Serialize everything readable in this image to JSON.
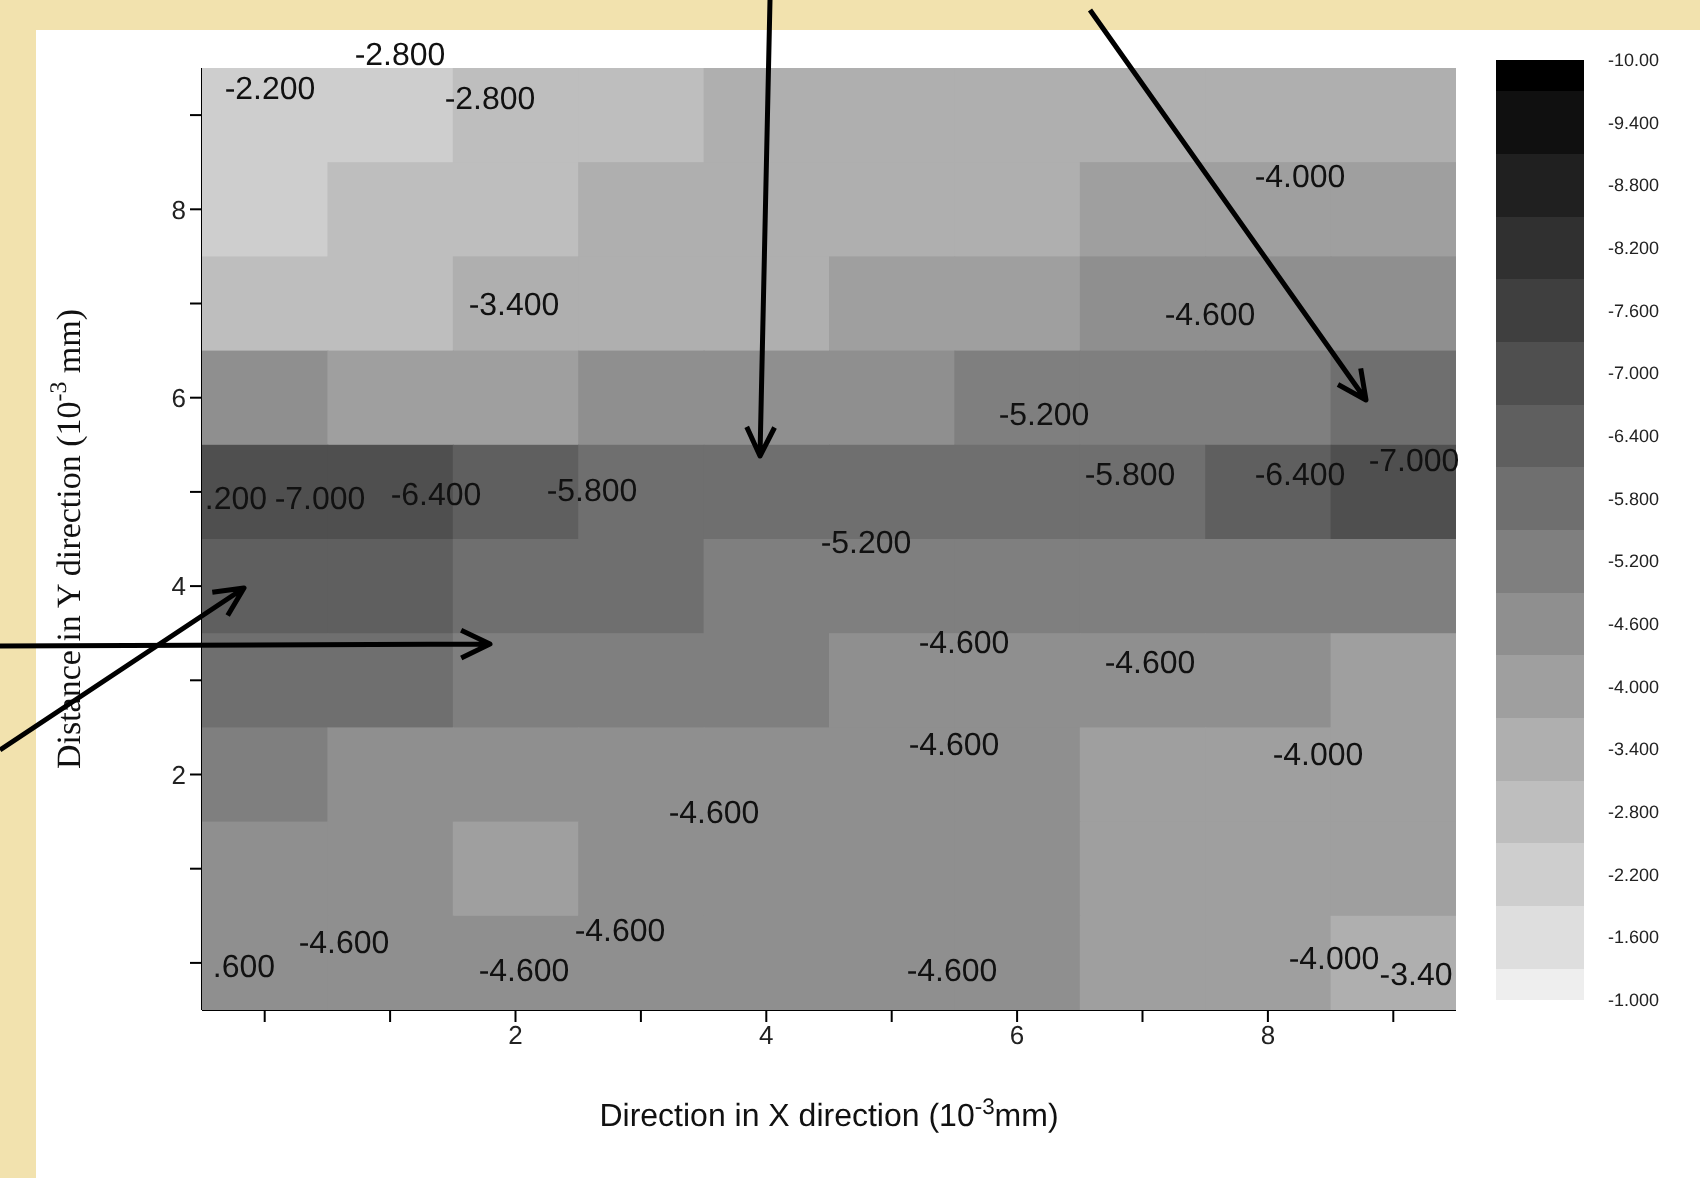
{
  "chart_data": {
    "type": "heatmap",
    "xlabel": "Direction in X direction (10$^{-3}$mm)",
    "ylabel": "Distance in Y direction (10$^{-3}$ mm)",
    "categories": [
      null,
      null,
      "2",
      null,
      "4",
      null,
      "6",
      null,
      "8",
      null
    ],
    "y_categories": [
      null,
      "8",
      null,
      "6",
      null,
      "4",
      null,
      "2",
      null,
      null
    ],
    "clim": [
      -10,
      -1
    ],
    "cticks": [
      {
        "value": -10,
        "label": "-10.00"
      },
      {
        "value": -9.4,
        "label": "-9.400"
      },
      {
        "value": -8.8,
        "label": "-8.800"
      },
      {
        "value": -8.2,
        "label": "-8.200"
      },
      {
        "value": -7.6,
        "label": "-7.600"
      },
      {
        "value": -7,
        "label": "-7.000"
      },
      {
        "value": -6.4,
        "label": "-6.400"
      },
      {
        "value": -5.8,
        "label": "-5.800"
      },
      {
        "value": -5.2,
        "label": "-5.200"
      },
      {
        "value": -4.6,
        "label": "-4.600"
      },
      {
        "value": -4,
        "label": "-4.000"
      },
      {
        "value": -3.4,
        "label": "-3.400"
      },
      {
        "value": -2.8,
        "label": "-2.800"
      },
      {
        "value": -2.2,
        "label": "-2.200"
      },
      {
        "value": -1.6,
        "label": "-1.600"
      },
      {
        "value": -1,
        "label": "-1.000"
      }
    ],
    "cells": [
      [
        -2.2,
        -2.2,
        -2.8,
        -2.8,
        -3.4,
        -3.4,
        -3.4,
        -3.4,
        -3.4,
        -3.4
      ],
      [
        -2.2,
        -2.8,
        -2.8,
        -3.4,
        -3.4,
        -3.4,
        -3.4,
        -4.0,
        -4.0,
        -4.0
      ],
      [
        -2.8,
        -2.8,
        -3.4,
        -3.4,
        -3.4,
        -4.0,
        -4.0,
        -4.6,
        -4.6,
        -4.6
      ],
      [
        -4.6,
        -4.0,
        -4.0,
        -4.6,
        -4.6,
        -4.6,
        -5.2,
        -5.2,
        -5.2,
        -5.8
      ],
      [
        -7.0,
        -7.0,
        -6.4,
        -5.8,
        -5.8,
        -5.8,
        -5.8,
        -5.8,
        -6.4,
        -7.0
      ],
      [
        -6.4,
        -6.4,
        -5.8,
        -5.8,
        -5.2,
        -5.2,
        -5.2,
        -5.2,
        -5.2,
        -5.2
      ],
      [
        -5.8,
        -5.8,
        -5.2,
        -5.2,
        -5.2,
        -4.6,
        -4.6,
        -4.6,
        -4.6,
        -4.0
      ],
      [
        -5.2,
        -4.6,
        -4.6,
        -4.6,
        -4.6,
        -4.6,
        -4.6,
        -4.0,
        -4.0,
        -4.0
      ],
      [
        -4.6,
        -4.6,
        -4.0,
        -4.6,
        -4.6,
        -4.6,
        -4.6,
        -4.0,
        -4.0,
        -4.0
      ],
      [
        -4.6,
        -4.6,
        -4.6,
        -4.6,
        -4.6,
        -4.6,
        -4.6,
        -4.0,
        -4.0,
        -3.4
      ]
    ],
    "annotations": [
      "-2.200",
      "-2.800",
      "-2.800",
      "-3.400",
      "-4.000",
      "-4.600",
      "-5.200",
      "-5.800",
      "-6.400",
      "-7.000",
      ".200",
      "-7.000",
      "-6.400",
      "-5.800",
      "-5.200",
      "-4.600",
      "-4.600",
      "-4.600",
      "-4.000",
      "-4.600",
      ".600",
      "-4.600",
      "-4.600",
      "-4.600",
      "-4.600",
      "-4.000",
      "-3.40"
    ]
  }
}
